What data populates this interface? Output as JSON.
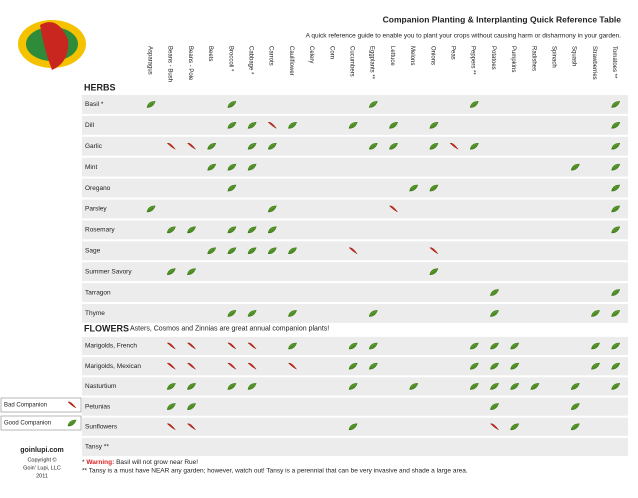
{
  "header": {
    "title": "Companion Planting & Interplanting Quick Reference Table",
    "subtitle": "A quick reference guide to enable you to plant your crops without causing harm or disharmony in your garden."
  },
  "columns": [
    "Asparagus",
    "Beans - Bush",
    "Beans - Pole",
    "Beets",
    "Broccoli *",
    "Cabbage *",
    "Carrots",
    "Cauliflower",
    "Celery",
    "Corn",
    "Cucumbers",
    "Eggplants **",
    "Lettuce",
    "Melons",
    "Onions",
    "Peas",
    "Peppers **",
    "Potatoes",
    "Pumpkins",
    "Radishes",
    "Spinach",
    "Squash",
    "Strawberries",
    "Tomatoes **"
  ],
  "sections": [
    {
      "title": "HERBS",
      "rows": [
        {
          "name": "Basil *",
          "good": [
            0,
            4,
            11,
            16,
            23
          ],
          "bad": []
        },
        {
          "name": "Dill",
          "good": [
            4,
            5,
            7,
            10,
            12,
            14,
            23
          ],
          "bad": [
            6
          ]
        },
        {
          "name": "Garlic",
          "good": [
            3,
            5,
            6,
            11,
            12,
            14,
            16,
            23
          ],
          "bad": [
            1,
            2,
            15
          ]
        },
        {
          "name": "Mint",
          "good": [
            3,
            4,
            5,
            21,
            23
          ],
          "bad": []
        },
        {
          "name": "Oregano",
          "good": [
            4,
            13,
            14,
            23
          ],
          "bad": []
        },
        {
          "name": "Parsley",
          "good": [
            0,
            6,
            23
          ],
          "bad": [
            12
          ]
        },
        {
          "name": "Rosemary",
          "good": [
            1,
            2,
            4,
            5,
            6,
            23
          ],
          "bad": []
        },
        {
          "name": "Sage",
          "good": [
            3,
            4,
            5,
            6,
            7
          ],
          "bad": [
            10,
            14
          ]
        },
        {
          "name": "Summer Savory",
          "good": [
            1,
            2,
            14
          ],
          "bad": []
        },
        {
          "name": "Tarragon",
          "good": [
            17,
            23
          ],
          "bad": []
        },
        {
          "name": "Thyme",
          "good": [
            4,
            5,
            7,
            11,
            17,
            22,
            23
          ],
          "bad": []
        }
      ]
    },
    {
      "title": "FLOWERS",
      "note": "Asters, Cosmos and Zinnias are great annual companion plants!",
      "rows": [
        {
          "name": "Marigolds, French",
          "good": [
            7,
            10,
            11,
            16,
            17,
            18,
            22,
            23
          ],
          "bad": [
            1,
            2,
            4,
            5
          ]
        },
        {
          "name": "Marigolds, Mexican",
          "good": [
            10,
            11,
            16,
            17,
            18,
            22,
            23
          ],
          "bad": [
            1,
            2,
            4,
            5,
            7
          ]
        },
        {
          "name": "Nasturtium",
          "good": [
            1,
            2,
            4,
            5,
            10,
            13,
            16,
            17,
            18,
            19,
            21,
            23
          ],
          "bad": []
        },
        {
          "name": "Petunias",
          "good": [
            1,
            2,
            17,
            21
          ],
          "bad": []
        },
        {
          "name": "Sunflowers",
          "good": [
            10,
            18,
            21
          ],
          "bad": [
            1,
            2,
            17
          ]
        },
        {
          "name": "Tansy **",
          "good": [],
          "bad": []
        }
      ]
    }
  ],
  "legend": {
    "bad": "Bad Companion",
    "good": "Good Companion"
  },
  "brand": {
    "site": "goinlupi.com",
    "lines": [
      "Copyright ©",
      "Goin' Lupi, LLC",
      "2011"
    ]
  },
  "footnotes": {
    "warning_prefix": "* ",
    "warning_label": "Warning:",
    "warning_text": " Basil will not grow near Rue!",
    "tansy": "** Tansy is a must have NEAR any garden; however, watch out!  Tansy is a perennial that can be very invasive and shade a large area."
  }
}
